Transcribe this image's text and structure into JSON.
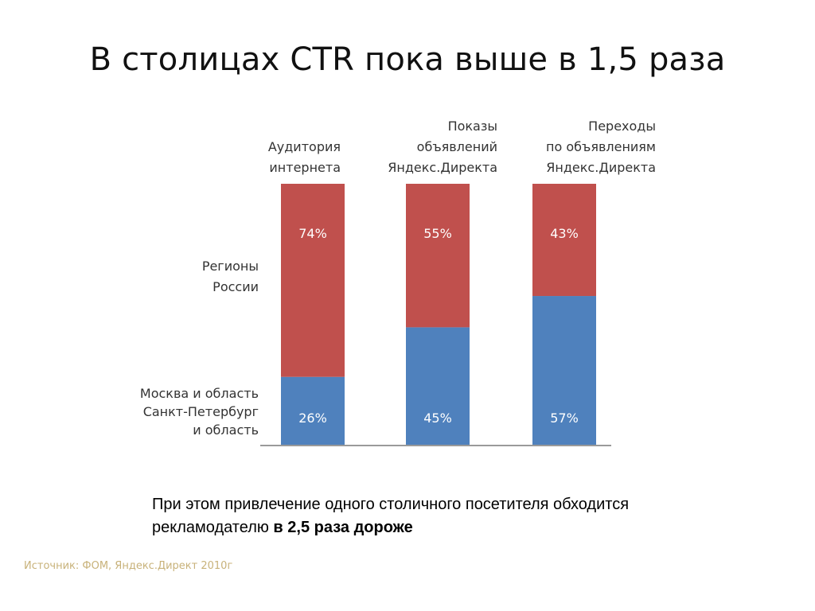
{
  "slide": {
    "title": "В столицах CTR пока выше в 1,5 раза",
    "note_text": "При этом привлечение одного столичного посетителя обходится рекламодателю ",
    "note_bold": "в 2,5 раза дороже",
    "source": "Источник: ФОМ, Яндекс.Директ 2010г"
  },
  "chart_data": {
    "type": "bar",
    "stacked": true,
    "unit": "%",
    "categories": [
      [
        "Аудитория",
        "интернета"
      ],
      [
        "Показы",
        "объявлений",
        "Яндекс.Директа"
      ],
      [
        "Переходы",
        "по объявлениям",
        "Яндекс.Директа"
      ]
    ],
    "series": [
      {
        "name_lines": [
          "Москва и область",
          "Санкт-Петербург",
          "и область"
        ],
        "values": [
          26,
          45,
          57
        ],
        "labels": [
          "26%",
          "45%",
          "57%"
        ],
        "color": "#4f81bd"
      },
      {
        "name_lines": [
          "Регионы",
          "России"
        ],
        "values": [
          74,
          55,
          43
        ],
        "labels": [
          "74%",
          "55%",
          "43%"
        ],
        "color": "#c0504d"
      }
    ],
    "ylim": [
      0,
      100
    ],
    "grid": false,
    "legend": "left"
  }
}
